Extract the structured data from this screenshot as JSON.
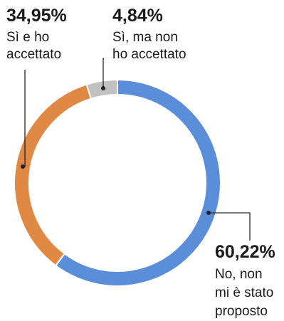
{
  "chart_data": {
    "type": "pie",
    "donut": true,
    "start_angle_deg": 0,
    "direction": "clockwise",
    "slices": [
      {
        "value": 60.22,
        "value_label": "60,22%",
        "label_lines": [
          "No, non",
          "mi è stato",
          "proposto"
        ],
        "color": "#5b8ed8"
      },
      {
        "value": 34.95,
        "value_label": "34,95%",
        "label_lines": [
          "Sì e ho",
          "accettato"
        ],
        "color": "#e08944"
      },
      {
        "value": 4.84,
        "value_label": "4,84%",
        "label_lines": [
          "Sì, ma non",
          "ho accettato"
        ],
        "color": "#c1c1c1"
      }
    ]
  }
}
